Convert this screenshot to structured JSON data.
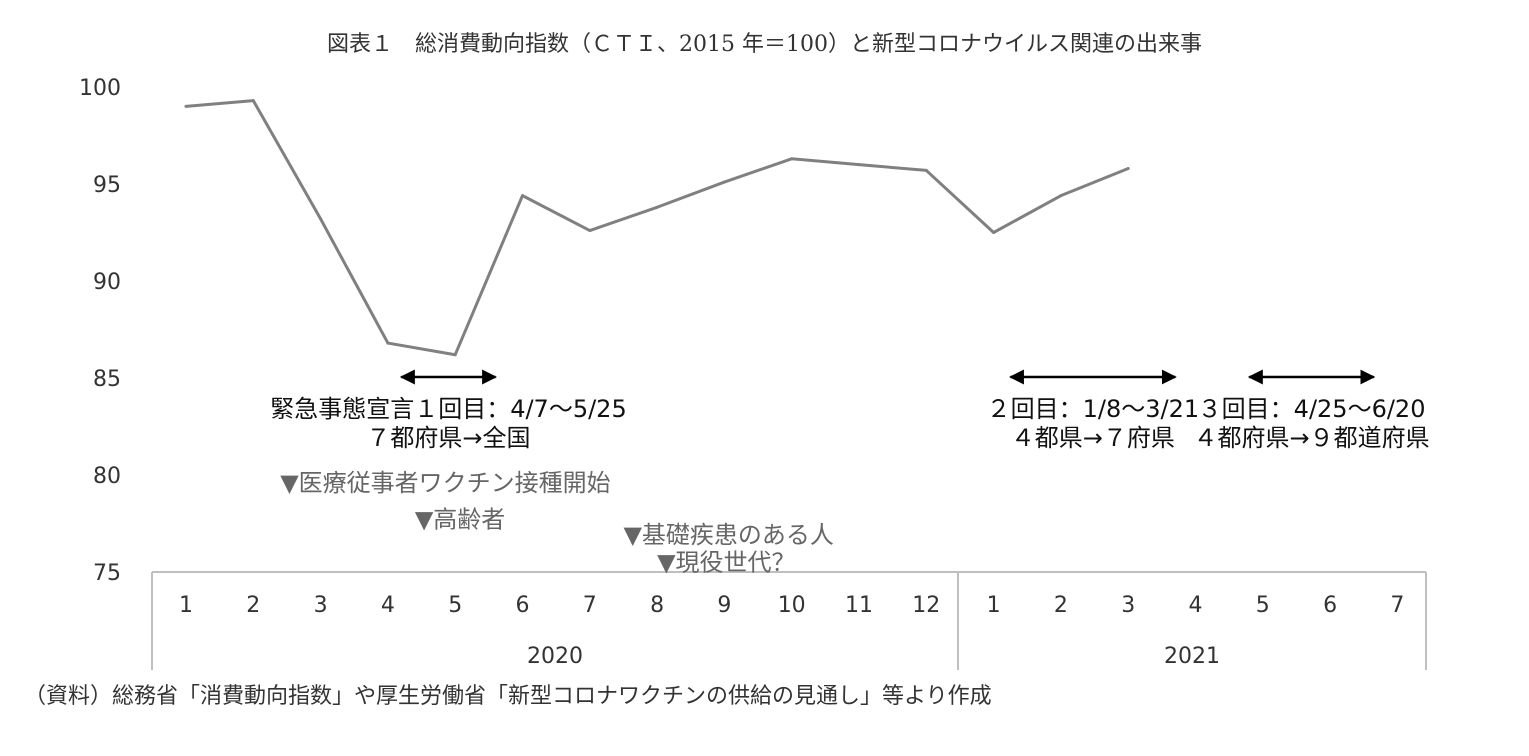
{
  "title": "図表１　総消費動向指数（ＣＴＩ、2015 年＝100）と新型コロナウイルス関連の出来事",
  "source": "（資料）総務省「消費動向指数」や厚生労働省「新型コロナワクチンの供給の見通し」等より作成",
  "colors": {
    "line": "#808080",
    "axis": "#bfbfbf",
    "arrow": "#000000",
    "note_gray": "#666666"
  },
  "chart_data": {
    "type": "line",
    "title": "図表１　総消費動向指数（ＣＴＩ、2015 年＝100）と新型コロナウイルス関連の出来事",
    "xlabel": "",
    "ylabel": "",
    "ylim": [
      75,
      100
    ],
    "yticks": [
      100,
      95,
      90,
      85,
      80,
      75
    ],
    "grid": false,
    "legend": "none",
    "categories": [
      "1",
      "2",
      "3",
      "4",
      "5",
      "6",
      "7",
      "8",
      "9",
      "10",
      "11",
      "12",
      "1",
      "2",
      "3",
      "4",
      "5",
      "6",
      "7"
    ],
    "groups": [
      {
        "label": "2020",
        "count": 12
      },
      {
        "label": "2021",
        "count": 7
      }
    ],
    "series": [
      {
        "values": [
          99.0,
          99.3,
          93.2,
          86.8,
          86.2,
          94.4,
          92.6,
          93.8,
          95.1,
          96.3,
          96.0,
          95.7,
          92.5,
          94.4,
          95.8,
          null,
          null,
          null,
          null
        ]
      }
    ]
  },
  "events": {
    "emergency": [
      {
        "line1": "緊急事態宣言１回目：4/7～5/25",
        "line2": "７都府県→全国",
        "from": 4.2,
        "to": 5.6
      },
      {
        "line1": "２回目：1/8～3/21",
        "line2": "４都県→７府県",
        "from": 13.25,
        "to": 15.7
      },
      {
        "line1": "３回目：4/25～6/20",
        "line2": "４都府県→９都道府県",
        "from": 16.8,
        "to": 18.65
      }
    ],
    "vaccines": [
      {
        "label": "▼医療従事者ワクチン接種開始",
        "month": 2.4,
        "level": 79.6
      },
      {
        "label": "▼高齢者",
        "month": 4.4,
        "level": 77.7
      },
      {
        "label": "▼基礎疾患のある人",
        "month": 7.5,
        "level": 76.9
      },
      {
        "label": "▼現役世代？",
        "month": 8.0,
        "level": 75.5
      }
    ]
  }
}
